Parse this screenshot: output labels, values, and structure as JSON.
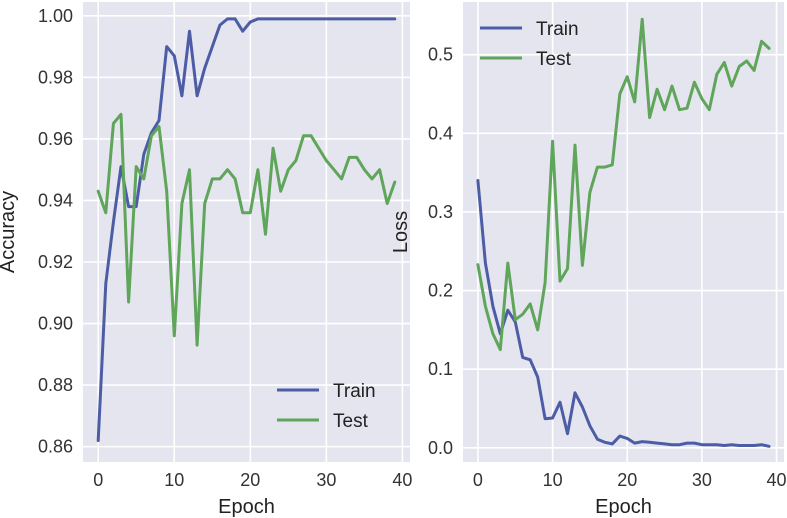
{
  "colors": {
    "train": "#4c5da5",
    "test": "#5fa55a",
    "background": "#e5e5f0",
    "grid": "#ffffff"
  },
  "chart_data": [
    {
      "type": "line",
      "title": "",
      "xlabel": "Epoch",
      "ylabel": "Accuracy",
      "xlim": [
        -2,
        41
      ],
      "ylim": [
        0.855,
        1.0045
      ],
      "xticks": [
        0,
        10,
        20,
        30,
        40
      ],
      "xtick_labels": [
        "0",
        "10",
        "20",
        "30",
        "40"
      ],
      "yticks": [
        0.86,
        0.88,
        0.9,
        0.92,
        0.94,
        0.96,
        0.98,
        1.0
      ],
      "ytick_labels": [
        "0.86",
        "0.88",
        "0.90",
        "0.92",
        "0.94",
        "0.96",
        "0.98",
        "1.00"
      ],
      "grid": true,
      "legend": {
        "placement": "lower-right",
        "entries": [
          "Train",
          "Test"
        ]
      },
      "series": [
        {
          "name": "Train",
          "color": "#4c5da5",
          "x": [
            0,
            1,
            2,
            3,
            4,
            5,
            6,
            7,
            8,
            9,
            10,
            11,
            12,
            13,
            14,
            15,
            16,
            17,
            18,
            19,
            20,
            21,
            22,
            23,
            24,
            25,
            26,
            27,
            28,
            29,
            30,
            31,
            32,
            33,
            34,
            35,
            36,
            37,
            38,
            39
          ],
          "values": [
            0.862,
            0.913,
            0.933,
            0.951,
            0.938,
            0.938,
            0.955,
            0.962,
            0.966,
            0.99,
            0.987,
            0.974,
            0.995,
            0.974,
            0.983,
            0.99,
            0.997,
            0.999,
            0.999,
            0.995,
            0.998,
            0.999,
            0.999,
            0.999,
            0.999,
            0.999,
            0.999,
            0.999,
            0.999,
            0.999,
            0.999,
            0.999,
            0.999,
            0.999,
            0.999,
            0.999,
            0.999,
            0.999,
            0.999,
            0.999
          ]
        },
        {
          "name": "Test",
          "color": "#5fa55a",
          "x": [
            0,
            1,
            2,
            3,
            4,
            5,
            6,
            7,
            8,
            9,
            10,
            11,
            12,
            13,
            14,
            15,
            16,
            17,
            18,
            19,
            20,
            21,
            22,
            23,
            24,
            25,
            26,
            27,
            28,
            29,
            30,
            31,
            32,
            33,
            34,
            35,
            36,
            37,
            38,
            39
          ],
          "values": [
            0.943,
            0.936,
            0.965,
            0.968,
            0.907,
            0.951,
            0.947,
            0.961,
            0.964,
            0.943,
            0.896,
            0.939,
            0.95,
            0.893,
            0.939,
            0.947,
            0.947,
            0.95,
            0.947,
            0.936,
            0.936,
            0.95,
            0.929,
            0.957,
            0.943,
            0.95,
            0.953,
            0.961,
            0.961,
            0.957,
            0.953,
            0.95,
            0.947,
            0.954,
            0.954,
            0.95,
            0.947,
            0.95,
            0.939,
            0.946
          ]
        }
      ]
    },
    {
      "type": "line",
      "title": "",
      "xlabel": "Epoch",
      "ylabel": "Loss",
      "xlim": [
        -2,
        41
      ],
      "ylim": [
        -0.018,
        0.567
      ],
      "xticks": [
        0,
        10,
        20,
        30,
        40
      ],
      "xtick_labels": [
        "0",
        "10",
        "20",
        "30",
        "40"
      ],
      "yticks": [
        0.0,
        0.1,
        0.2,
        0.3,
        0.4,
        0.5
      ],
      "ytick_labels": [
        "0.0",
        "0.1",
        "0.2",
        "0.3",
        "0.4",
        "0.5"
      ],
      "grid": true,
      "legend": {
        "placement": "upper-left",
        "entries": [
          "Train",
          "Test"
        ]
      },
      "series": [
        {
          "name": "Train",
          "color": "#4c5da5",
          "x": [
            0,
            1,
            2,
            3,
            4,
            5,
            6,
            7,
            8,
            9,
            10,
            11,
            12,
            13,
            14,
            15,
            16,
            17,
            18,
            19,
            20,
            21,
            22,
            23,
            24,
            25,
            26,
            27,
            28,
            29,
            30,
            31,
            32,
            33,
            34,
            35,
            36,
            37,
            38,
            39
          ],
          "values": [
            0.34,
            0.235,
            0.18,
            0.145,
            0.175,
            0.16,
            0.115,
            0.112,
            0.09,
            0.037,
            0.038,
            0.058,
            0.018,
            0.07,
            0.052,
            0.028,
            0.011,
            0.007,
            0.005,
            0.015,
            0.012,
            0.006,
            0.008,
            0.007,
            0.006,
            0.005,
            0.004,
            0.004,
            0.006,
            0.006,
            0.004,
            0.004,
            0.004,
            0.003,
            0.004,
            0.003,
            0.003,
            0.003,
            0.004,
            0.002
          ]
        },
        {
          "name": "Test",
          "color": "#5fa55a",
          "x": [
            0,
            1,
            2,
            3,
            4,
            5,
            6,
            7,
            8,
            9,
            10,
            11,
            12,
            13,
            14,
            15,
            16,
            17,
            18,
            19,
            20,
            21,
            22,
            23,
            24,
            25,
            26,
            27,
            28,
            29,
            30,
            31,
            32,
            33,
            34,
            35,
            36,
            37,
            38,
            39
          ],
          "values": [
            0.233,
            0.18,
            0.145,
            0.125,
            0.235,
            0.163,
            0.17,
            0.183,
            0.15,
            0.21,
            0.39,
            0.212,
            0.228,
            0.385,
            0.232,
            0.325,
            0.357,
            0.357,
            0.36,
            0.45,
            0.472,
            0.44,
            0.545,
            0.42,
            0.456,
            0.43,
            0.46,
            0.43,
            0.432,
            0.465,
            0.444,
            0.43,
            0.475,
            0.49,
            0.46,
            0.485,
            0.492,
            0.48,
            0.517,
            0.508
          ]
        }
      ]
    }
  ]
}
